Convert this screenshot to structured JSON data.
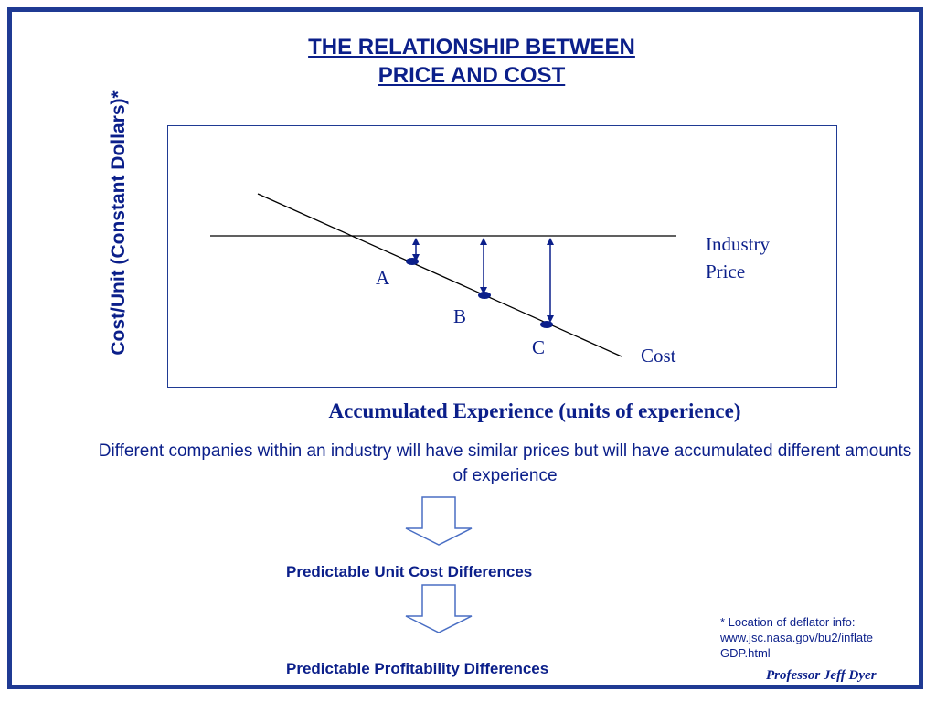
{
  "slide": {
    "title_line1": "THE RELATIONSHIP BETWEEN",
    "title_line2": "PRICE AND COST",
    "y_axis_label": "Cost/Unit (Constant Dollars)*",
    "x_axis_label": "Accumulated Experience (units of experience)",
    "industry_price_label_line1": "Industry",
    "industry_price_label_line2": "Price",
    "cost_label": "Cost",
    "points": [
      "A",
      "B",
      "C"
    ],
    "description": "Different companies within an industry will have similar prices but will have accumulated different amounts of experience",
    "step1": "Predictable Unit Cost Differences",
    "step2": "Predictable Profitability Differences",
    "footnote_line1": "* Location of deflator info:",
    "footnote_line2": "www.jsc.nasa.gov/bu2/inflate",
    "footnote_line3": "GDP.html",
    "author": "Professor Jeff Dyer"
  },
  "colors": {
    "navy": "#0b1f8a",
    "border": "#1f3a93",
    "arrow_outline": "#4a6fc4"
  }
}
